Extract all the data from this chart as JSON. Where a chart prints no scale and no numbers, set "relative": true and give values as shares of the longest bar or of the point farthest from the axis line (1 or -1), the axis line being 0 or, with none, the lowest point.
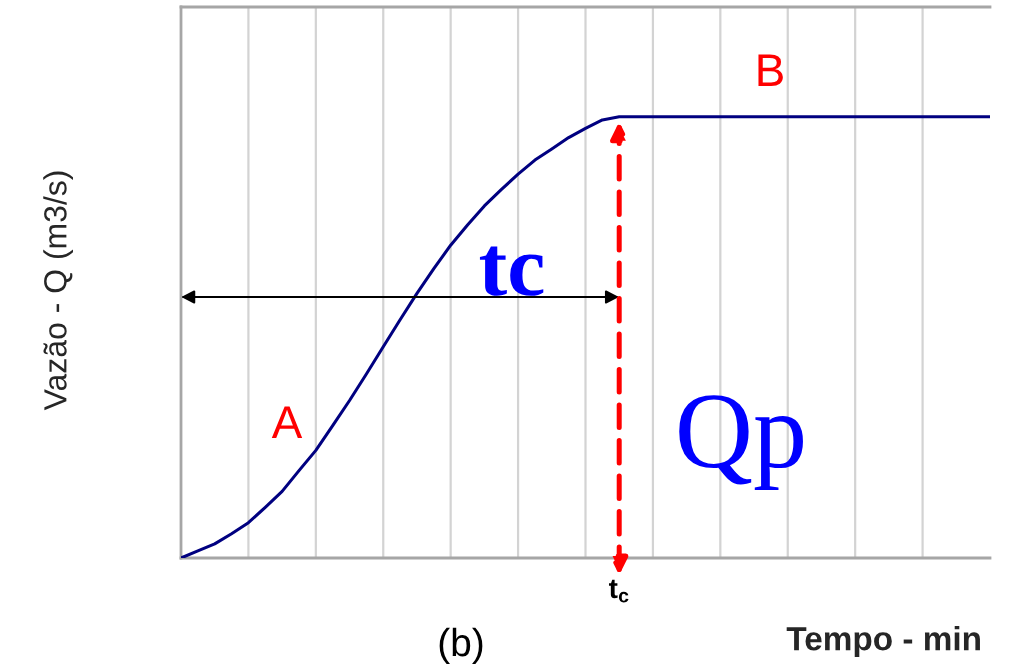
{
  "chart_data": {
    "type": "line",
    "relative": true,
    "ylabel": "Vazão - Q (m3/s)",
    "xlabel": "Tempo - min",
    "categories": [
      null,
      null,
      null,
      null,
      null,
      null,
      null,
      null,
      null,
      null,
      null,
      null,
      null,
      null,
      null,
      null,
      null,
      null,
      null,
      null,
      null,
      null,
      null,
      null,
      null,
      null,
      null,
      null,
      null,
      null,
      null,
      null,
      null,
      null,
      null,
      null,
      null,
      null,
      null,
      null,
      null,
      null,
      null,
      null,
      null,
      null,
      null,
      null,
      null
    ],
    "series": [
      {
        "color": "#000080",
        "values": [
          0,
          0.016,
          0.032,
          0.055,
          0.08,
          0.115,
          0.151,
          0.198,
          0.244,
          0.3,
          0.357,
          0.417,
          0.479,
          0.54,
          0.6,
          0.656,
          0.709,
          0.755,
          0.798,
          0.835,
          0.87,
          0.902,
          0.927,
          0.953,
          0.974,
          0.993,
          1,
          1,
          1,
          1,
          1,
          1,
          1,
          1,
          1,
          1,
          1,
          1,
          1,
          1,
          1,
          1,
          1,
          1,
          1,
          1,
          1,
          1,
          1
        ]
      }
    ],
    "annotations": [
      "A",
      "B",
      "tc",
      "Qp",
      "(b)",
      "t$_{c}$"
    ],
    "grid": "x"
  }
}
